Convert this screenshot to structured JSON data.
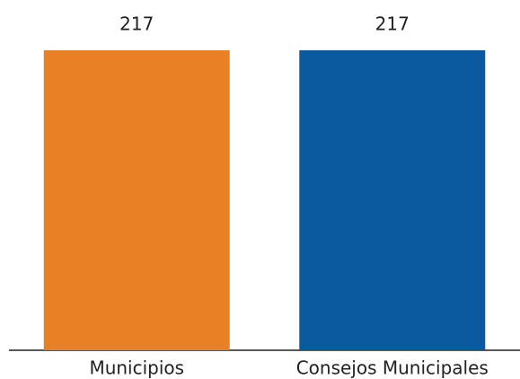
{
  "chart_data": {
    "type": "bar",
    "categories": [
      "Municipios",
      "Consejos Municipales"
    ],
    "values": [
      217,
      217
    ],
    "colors": [
      "#ea8025",
      "#0b599f"
    ]
  }
}
